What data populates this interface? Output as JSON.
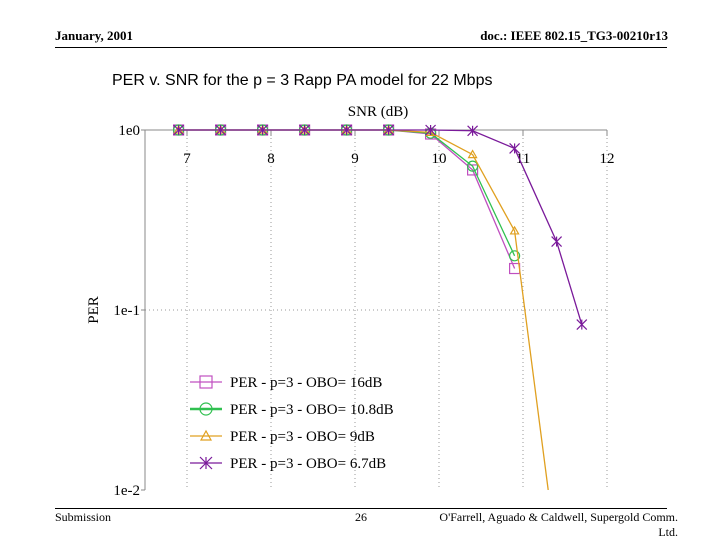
{
  "header": {
    "left": "January, 2001",
    "right": "doc.: IEEE 802.15_TG3-00210r13"
  },
  "footer": {
    "left": "Submission",
    "page": "26",
    "right_line1": "O'Farrell, Aguado & Caldwell, Supergold Comm.",
    "right_line2": "Ltd."
  },
  "chart_data": {
    "type": "line",
    "title": "PER v. SNR for the p = 3 Rapp PA model for 22 Mbps",
    "xlabel": "SNR (dB)",
    "ylabel": "PER",
    "xlim": [
      6.5,
      12
    ],
    "ylim": [
      0.01,
      1
    ],
    "y_scale": "log",
    "x_ticks": [
      "7",
      "8",
      "9",
      "10",
      "11",
      "12"
    ],
    "y_ticks": [
      "1e0",
      "1e-1",
      "1e-2"
    ],
    "x_axis_position": "top",
    "grid": "dotted",
    "legend_position": "bottom-left",
    "series": [
      {
        "name": "PER - p=3 - OBO= 16dB",
        "color": "#c050c0",
        "marker": "square",
        "x": [
          6.9,
          7.4,
          7.9,
          8.4,
          8.9,
          9.4,
          9.9,
          10.4,
          10.9
        ],
        "y": [
          1.0,
          1.0,
          1.0,
          1.0,
          1.0,
          1.0,
          0.95,
          0.6,
          0.17
        ]
      },
      {
        "name": "PER - p=3 - OBO= 10.8dB",
        "color": "#30c050",
        "marker": "circle",
        "x": [
          6.9,
          7.4,
          7.9,
          8.4,
          8.9,
          9.4,
          9.9,
          10.4,
          10.9
        ],
        "y": [
          1.0,
          1.0,
          1.0,
          1.0,
          1.0,
          1.0,
          0.96,
          0.63,
          0.2
        ]
      },
      {
        "name": "PER - p=3 - OBO= 9dB",
        "color": "#e0a020",
        "marker": "triangle",
        "x": [
          6.9,
          7.4,
          7.9,
          8.4,
          8.9,
          9.4,
          9.9,
          10.4,
          10.9,
          11.3
        ],
        "y": [
          1.0,
          1.0,
          1.0,
          1.0,
          1.0,
          1.0,
          0.97,
          0.73,
          0.275,
          0.01
        ]
      },
      {
        "name": "PER - p=3 - OBO= 6.7dB",
        "color": "#7a1a9a",
        "marker": "asterisk",
        "x": [
          6.9,
          7.4,
          7.9,
          8.4,
          8.9,
          9.4,
          9.9,
          10.4,
          10.9,
          11.4,
          11.7
        ],
        "y": [
          1.0,
          1.0,
          1.0,
          1.0,
          1.0,
          1.0,
          1.0,
          0.99,
          0.79,
          0.24,
          0.083
        ]
      }
    ]
  }
}
